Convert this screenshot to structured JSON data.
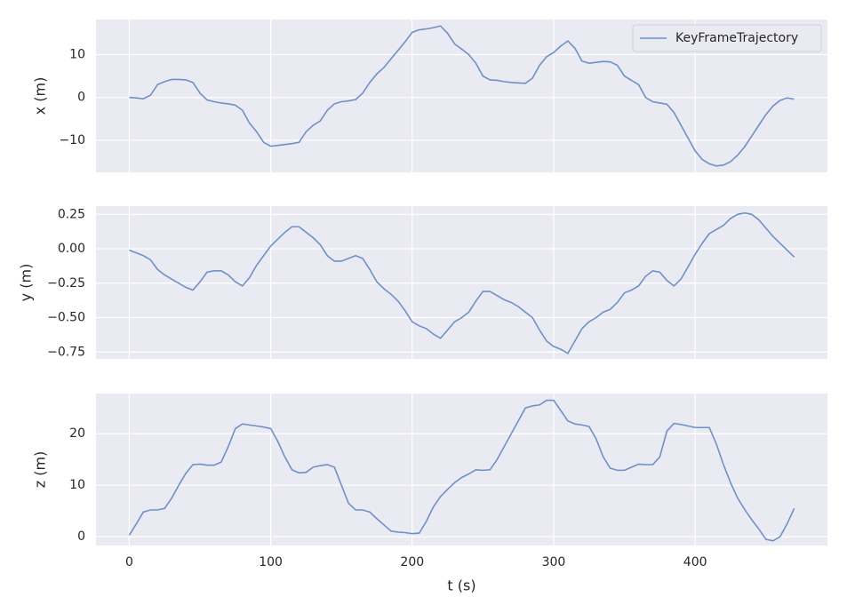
{
  "chart_data": [
    {
      "type": "line",
      "ylabel": "x (m)",
      "legend": "upper right",
      "grid": true,
      "xlim": [
        -23.5,
        493.5
      ],
      "xticks": [
        0,
        100,
        200,
        300,
        400
      ],
      "ylim": [
        -17.5,
        18.2
      ],
      "yticks": [
        {
          "value": -10,
          "label": "−10"
        },
        0,
        10
      ],
      "x": [
        0,
        5,
        10,
        15,
        20,
        25,
        30,
        35,
        40,
        45,
        50,
        55,
        60,
        65,
        70,
        75,
        80,
        85,
        90,
        95,
        100,
        105,
        110,
        115,
        120,
        125,
        130,
        135,
        140,
        145,
        150,
        155,
        160,
        165,
        170,
        175,
        180,
        185,
        190,
        195,
        200,
        205,
        210,
        215,
        220,
        225,
        230,
        235,
        240,
        245,
        250,
        255,
        260,
        265,
        270,
        275,
        280,
        285,
        290,
        295,
        300,
        305,
        310,
        315,
        320,
        325,
        330,
        335,
        340,
        345,
        350,
        355,
        360,
        365,
        370,
        375,
        380,
        385,
        390,
        395,
        400,
        405,
        410,
        415,
        420,
        425,
        430,
        435,
        440,
        445,
        450,
        455,
        460,
        465,
        470
      ],
      "series": [
        {
          "name": "KeyFrameTrajectory",
          "color": "#7090c8",
          "values": [
            0,
            -0.1,
            -0.3,
            0.5,
            3,
            3.7,
            4.2,
            4.2,
            4.1,
            3.5,
            1,
            -0.6,
            -1,
            -1.3,
            -1.5,
            -1.8,
            -3,
            -6,
            -8,
            -10.5,
            -11.4,
            -11.2,
            -11,
            -10.8,
            -10.5,
            -8,
            -6.5,
            -5.5,
            -3,
            -1.5,
            -1,
            -0.8,
            -0.5,
            1,
            3.5,
            5.5,
            7,
            9,
            11,
            13,
            15.2,
            15.8,
            16,
            16.3,
            16.7,
            15,
            12.5,
            11.3,
            10,
            8,
            5,
            4.1,
            4,
            3.7,
            3.5,
            3.4,
            3.3,
            4.5,
            7.5,
            9.5,
            10.5,
            12,
            13.2,
            11.5,
            8.5,
            8,
            8.2,
            8.4,
            8.3,
            7.5,
            5,
            4,
            3,
            0,
            -1,
            -1.3,
            -1.6,
            -3.5,
            -6.5,
            -9.5,
            -12.5,
            -14.5,
            -15.5,
            -16,
            -15.8,
            -15,
            -13.5,
            -11.5,
            -9,
            -6.5,
            -4,
            -2,
            -0.7,
            -0.1,
            -0.4
          ]
        }
      ]
    },
    {
      "type": "line",
      "ylabel": "y (m)",
      "grid": true,
      "xlim": [
        -23.5,
        493.5
      ],
      "xticks": [
        0,
        100,
        200,
        300,
        400
      ],
      "ylim": [
        -0.8,
        0.31
      ],
      "yticks": [
        {
          "value": -0.75,
          "label": "−0.75"
        },
        {
          "value": -0.5,
          "label": "−0.50"
        },
        {
          "value": -0.25,
          "label": "−0.25"
        },
        {
          "value": 0,
          "label": "0.00"
        },
        0.25
      ],
      "x": [
        0,
        5,
        10,
        15,
        20,
        25,
        30,
        35,
        40,
        45,
        50,
        55,
        60,
        65,
        70,
        75,
        80,
        85,
        90,
        95,
        100,
        105,
        110,
        115,
        120,
        125,
        130,
        135,
        140,
        145,
        150,
        155,
        160,
        165,
        170,
        175,
        180,
        185,
        190,
        195,
        200,
        205,
        210,
        215,
        220,
        225,
        230,
        235,
        240,
        245,
        250,
        255,
        260,
        265,
        270,
        275,
        280,
        285,
        290,
        295,
        300,
        305,
        310,
        315,
        320,
        325,
        330,
        335,
        340,
        345,
        350,
        355,
        360,
        365,
        370,
        375,
        380,
        385,
        390,
        395,
        400,
        405,
        410,
        415,
        420,
        425,
        430,
        435,
        440,
        445,
        450,
        455,
        460,
        465,
        470
      ],
      "series": [
        {
          "name": "KeyFrameTrajectory",
          "color": "#7090c8",
          "values": [
            -0.01,
            -0.03,
            -0.05,
            -0.08,
            -0.15,
            -0.19,
            -0.22,
            -0.25,
            -0.28,
            -0.3,
            -0.24,
            -0.17,
            -0.16,
            -0.16,
            -0.19,
            -0.24,
            -0.27,
            -0.21,
            -0.12,
            -0.05,
            0.02,
            0.07,
            0.12,
            0.16,
            0.16,
            0.12,
            0.08,
            0.03,
            -0.05,
            -0.09,
            -0.09,
            -0.07,
            -0.05,
            -0.07,
            -0.15,
            -0.24,
            -0.29,
            -0.33,
            -0.38,
            -0.45,
            -0.53,
            -0.56,
            -0.58,
            -0.62,
            -0.65,
            -0.59,
            -0.53,
            -0.5,
            -0.46,
            -0.38,
            -0.31,
            -0.31,
            -0.34,
            -0.37,
            -0.39,
            -0.42,
            -0.46,
            -0.5,
            -0.59,
            -0.67,
            -0.71,
            -0.73,
            -0.76,
            -0.67,
            -0.58,
            -0.53,
            -0.5,
            -0.46,
            -0.44,
            -0.39,
            -0.32,
            -0.3,
            -0.27,
            -0.2,
            -0.16,
            -0.17,
            -0.23,
            -0.27,
            -0.22,
            -0.13,
            -0.04,
            0.04,
            0.11,
            0.14,
            0.17,
            0.22,
            0.25,
            0.26,
            0.25,
            0.21,
            0.15,
            0.09,
            0.04,
            -0.01,
            -0.06
          ]
        }
      ]
    },
    {
      "type": "line",
      "ylabel": "z (m)",
      "xlabel": "t (s)",
      "grid": true,
      "xlim": [
        -23.5,
        493.5
      ],
      "xticks": [
        0,
        100,
        200,
        300,
        400
      ],
      "ylim": [
        -1.7,
        27.8
      ],
      "yticks": [
        0,
        10,
        20
      ],
      "x": [
        0,
        5,
        10,
        15,
        20,
        25,
        30,
        35,
        40,
        45,
        50,
        55,
        60,
        65,
        70,
        75,
        80,
        85,
        90,
        95,
        100,
        105,
        110,
        115,
        120,
        125,
        130,
        135,
        140,
        145,
        150,
        155,
        160,
        165,
        170,
        175,
        180,
        185,
        190,
        195,
        200,
        205,
        210,
        215,
        220,
        225,
        230,
        235,
        240,
        245,
        250,
        255,
        260,
        265,
        270,
        275,
        280,
        285,
        290,
        295,
        300,
        305,
        310,
        315,
        320,
        325,
        330,
        335,
        340,
        345,
        350,
        355,
        360,
        365,
        370,
        375,
        380,
        385,
        390,
        395,
        400,
        405,
        410,
        415,
        420,
        425,
        430,
        435,
        440,
        445,
        450,
        455,
        460,
        465,
        470
      ],
      "series": [
        {
          "name": "KeyFrameTrajectory",
          "color": "#7090c8",
          "values": [
            0.3,
            2.5,
            4.8,
            5.2,
            5.2,
            5.5,
            7.5,
            10,
            12.3,
            14,
            14.1,
            13.9,
            13.9,
            14.5,
            17.5,
            21,
            21.9,
            21.7,
            21.5,
            21.3,
            21,
            18.5,
            15.5,
            13,
            12.4,
            12.5,
            13.5,
            13.8,
            14,
            13.5,
            10,
            6.5,
            5.2,
            5.2,
            4.8,
            3.5,
            2.3,
            1.1,
            0.9,
            0.8,
            0.6,
            0.7,
            3,
            5.8,
            7.8,
            9.2,
            10.5,
            11.5,
            12.2,
            13,
            12.9,
            13,
            15,
            17.5,
            20,
            22.5,
            25,
            25.4,
            25.6,
            26.5,
            26.5,
            24.5,
            22.5,
            21.9,
            21.7,
            21.4,
            19,
            15.5,
            13.3,
            12.9,
            12.9,
            13.5,
            14.1,
            14,
            14,
            15.5,
            20.5,
            22,
            21.8,
            21.5,
            21.2,
            21.2,
            21.2,
            18,
            14,
            10.5,
            7.5,
            5.3,
            3.3,
            1.5,
            -0.5,
            -0.8,
            0,
            2.5,
            5.5
          ]
        }
      ]
    }
  ]
}
